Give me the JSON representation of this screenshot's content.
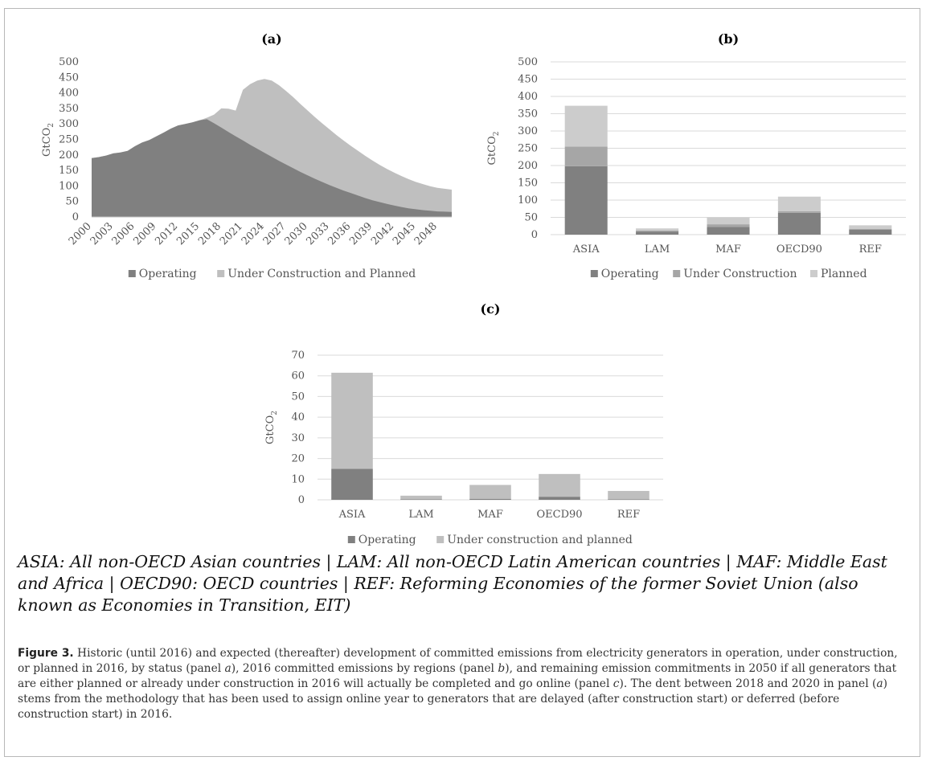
{
  "chart_data": [
    {
      "panel": "(a)",
      "type": "area",
      "title": "(a)",
      "ylabel": "GtCO2",
      "ylim": [
        0,
        500
      ],
      "yticks": [
        0,
        50,
        100,
        150,
        200,
        250,
        300,
        350,
        400,
        450,
        500
      ],
      "xlabels": [
        "2000",
        "2003",
        "2006",
        "2009",
        "2012",
        "2015",
        "2018",
        "2021",
        "2024",
        "2027",
        "2030",
        "2033",
        "2036",
        "2039",
        "2042",
        "2045",
        "2048"
      ],
      "x": [
        2000,
        2001,
        2002,
        2003,
        2004,
        2005,
        2006,
        2007,
        2008,
        2009,
        2010,
        2011,
        2012,
        2013,
        2014,
        2015,
        2016,
        2017,
        2018,
        2019,
        2020,
        2021,
        2022,
        2023,
        2024,
        2025,
        2026,
        2027,
        2028,
        2029,
        2030,
        2031,
        2032,
        2033,
        2034,
        2035,
        2036,
        2037,
        2038,
        2039,
        2040,
        2041,
        2042,
        2043,
        2044,
        2045,
        2046,
        2047,
        2048,
        2049,
        2050
      ],
      "stacked": true,
      "grid": false,
      "legend_position": "bottom",
      "colors": [
        "#808080",
        "#bfbfbf"
      ],
      "series": [
        {
          "name": "Operating",
          "values": [
            190,
            193,
            198,
            205,
            208,
            213,
            228,
            240,
            248,
            260,
            272,
            285,
            295,
            300,
            305,
            312,
            315,
            302,
            288,
            274,
            260,
            247,
            233,
            220,
            207,
            194,
            181,
            169,
            157,
            145,
            134,
            123,
            113,
            103,
            94,
            85,
            77,
            69,
            61,
            54,
            48,
            42,
            37,
            32,
            28,
            25,
            22,
            20,
            18,
            17,
            16
          ]
        },
        {
          "name": "Under Construction and Planned",
          "values": [
            0,
            0,
            0,
            0,
            0,
            0,
            0,
            0,
            0,
            0,
            0,
            0,
            0,
            0,
            0,
            0,
            5,
            28,
            62,
            75,
            83,
            163,
            195,
            220,
            238,
            246,
            244,
            237,
            229,
            219,
            209,
            199,
            189,
            180,
            170,
            161,
            152,
            144,
            136,
            128,
            120,
            113,
            106,
            100,
            94,
            88,
            84,
            79,
            76,
            74,
            72
          ]
        }
      ]
    },
    {
      "panel": "(b)",
      "type": "bar",
      "stacked": true,
      "title": "(b)",
      "ylabel": "GtCO2",
      "ylim": [
        0,
        500
      ],
      "yticks": [
        0,
        50,
        100,
        150,
        200,
        250,
        300,
        350,
        400,
        450,
        500
      ],
      "categories": [
        "ASIA",
        "LAM",
        "MAF",
        "OECD90",
        "REF"
      ],
      "grid": true,
      "legend_position": "bottom",
      "colors": [
        "#808080",
        "#a6a6a6",
        "#cccccc"
      ],
      "series": [
        {
          "name": "Operating",
          "values": [
            198,
            9,
            22,
            63,
            14
          ]
        },
        {
          "name": "Under Construction",
          "values": [
            57,
            3,
            8,
            5,
            3
          ]
        },
        {
          "name": "Planned",
          "values": [
            118,
            6,
            20,
            42,
            10
          ]
        }
      ]
    },
    {
      "panel": "(c)",
      "type": "bar",
      "stacked": true,
      "title": "(c)",
      "ylabel": "GtCO2",
      "ylim": [
        0,
        70
      ],
      "yticks": [
        0,
        10,
        20,
        30,
        40,
        50,
        60,
        70
      ],
      "categories": [
        "ASIA",
        "LAM",
        "MAF",
        "OECD90",
        "REF"
      ],
      "grid": true,
      "legend_position": "bottom",
      "colors": [
        "#808080",
        "#bfbfbf"
      ],
      "series": [
        {
          "name": "Operating",
          "values": [
            15,
            0.3,
            0.5,
            1.5,
            0.3
          ]
        },
        {
          "name": "Under construction and planned",
          "values": [
            46.5,
            1.7,
            6.7,
            11,
            4
          ]
        }
      ]
    }
  ],
  "legend_text": "ASIA: All non-OECD Asian countries | LAM: All non-OECD Latin American countries | MAF: Middle East and Africa | OECD90: OECD countries | REF: Reforming Economies of the former Soviet Union (also known as Economies in Transition, EIT)",
  "caption": {
    "label": "Figure 3.",
    "parts": [
      " Historic (until 2016) and expected (thereafter) development of committed emissions from electricity generators in operation, under construction, or planned in 2016, by status (panel ",
      "a",
      "), 2016 committed emissions by regions (panel ",
      "b",
      "), and remaining emission commitments in 2050 if all generators that are either planned or already under construction in 2016 will actually be completed and go online (panel ",
      "c",
      "). The dent between 2018 and 2020 in panel (",
      "a",
      ") stems from the methodology that has been used to assign online year to generators that are delayed (after construction start) or deferred (before construction start) in 2016."
    ]
  }
}
